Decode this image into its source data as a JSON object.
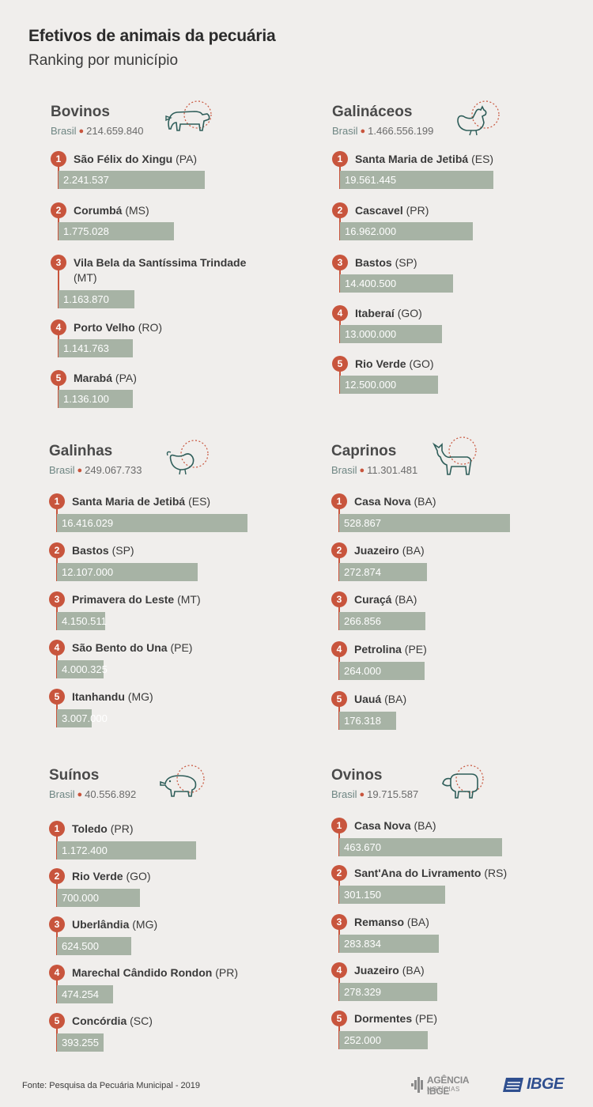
{
  "title": "Efetivos de animais da pecuária",
  "subtitle": "Ranking por município",
  "footer": "Fonte: Pesquisa da Pecuária Municipal - 2019",
  "logo_agencia": {
    "line1": "AGÊNCIA IBGE",
    "line2": "NOTÍCIAS"
  },
  "logo_ibge": "IBGE",
  "colors": {
    "rank": "#c8553d",
    "bar": "#a7b3a5",
    "icon": "#2f5e5a",
    "background": "#f0eeec"
  },
  "chart_data": [
    {
      "type": "bar",
      "title": "Bovinos",
      "icon": "cow-icon",
      "brasil_label": "Brasil",
      "brasil_value": "214.659.840",
      "items": [
        {
          "rank": "1",
          "name": "São Félix do Xingu",
          "uf": "(PA)",
          "value": 2241537,
          "label": "2.241.537"
        },
        {
          "rank": "2",
          "name": "Corumbá",
          "uf": "(MS)",
          "value": 1775028,
          "label": "1.775.028"
        },
        {
          "rank": "3",
          "name": "Vila Bela da Santíssima Trindade",
          "uf": "(MT)",
          "value": 1163870,
          "label": "1.163.870"
        },
        {
          "rank": "4",
          "name": "Porto Velho",
          "uf": "(RO)",
          "value": 1141763,
          "label": "1.141.763"
        },
        {
          "rank": "5",
          "name": "Marabá",
          "uf": "(PA)",
          "value": 1136100,
          "label": "1.136.100"
        }
      ]
    },
    {
      "type": "bar",
      "title": "Galináceos",
      "icon": "rooster-icon",
      "brasil_label": "Brasil",
      "brasil_value": "1.466.556.199",
      "items": [
        {
          "rank": "1",
          "name": "Santa Maria de Jetibá",
          "uf": "(ES)",
          "value": 19561445,
          "label": "19.561.445"
        },
        {
          "rank": "2",
          "name": "Cascavel",
          "uf": "(PR)",
          "value": 16962000,
          "label": "16.962.000"
        },
        {
          "rank": "3",
          "name": "Bastos",
          "uf": "(SP)",
          "value": 14400500,
          "label": "14.400.500"
        },
        {
          "rank": "4",
          "name": "Itaberaí",
          "uf": "(GO)",
          "value": 13000000,
          "label": "13.000.000"
        },
        {
          "rank": "5",
          "name": "Rio Verde",
          "uf": "(GO)",
          "value": 12500000,
          "label": "12.500.000"
        }
      ]
    },
    {
      "type": "bar",
      "title": "Galinhas",
      "icon": "hen-icon",
      "brasil_label": "Brasil",
      "brasil_value": "249.067.733",
      "items": [
        {
          "rank": "1",
          "name": "Santa Maria de Jetibá",
          "uf": "(ES)",
          "value": 16416029,
          "label": "16.416.029"
        },
        {
          "rank": "2",
          "name": "Bastos",
          "uf": "(SP)",
          "value": 12107000,
          "label": "12.107.000"
        },
        {
          "rank": "3",
          "name": "Primavera do Leste",
          "uf": "(MT)",
          "value": 4150511,
          "label": "4.150.511"
        },
        {
          "rank": "4",
          "name": "São Bento do Una",
          "uf": "(PE)",
          "value": 4000325,
          "label": "4.000.325"
        },
        {
          "rank": "5",
          "name": "Itanhandu",
          "uf": "(MG)",
          "value": 3007000,
          "label": "3.007.000"
        }
      ]
    },
    {
      "type": "bar",
      "title": "Caprinos",
      "icon": "goat-icon",
      "brasil_label": "Brasil",
      "brasil_value": "11.301.481",
      "items": [
        {
          "rank": "1",
          "name": "Casa Nova",
          "uf": "(BA)",
          "value": 528867,
          "label": "528.867"
        },
        {
          "rank": "2",
          "name": "Juazeiro",
          "uf": "(BA)",
          "value": 272874,
          "label": "272.874"
        },
        {
          "rank": "3",
          "name": "Curaçá",
          "uf": "(BA)",
          "value": 266856,
          "label": "266.856"
        },
        {
          "rank": "4",
          "name": "Petrolina",
          "uf": "(PE)",
          "value": 264000,
          "label": "264.000"
        },
        {
          "rank": "5",
          "name": "Uauá",
          "uf": "(BA)",
          "value": 176318,
          "label": "176.318"
        }
      ]
    },
    {
      "type": "bar",
      "title": "Suínos",
      "icon": "pig-icon",
      "brasil_label": "Brasil",
      "brasil_value": "40.556.892",
      "items": [
        {
          "rank": "1",
          "name": "Toledo",
          "uf": "(PR)",
          "value": 1172400,
          "label": "1.172.400"
        },
        {
          "rank": "2",
          "name": "Rio Verde",
          "uf": "(GO)",
          "value": 700000,
          "label": "700.000"
        },
        {
          "rank": "3",
          "name": "Uberlândia",
          "uf": "(MG)",
          "value": 624500,
          "label": "624.500"
        },
        {
          "rank": "4",
          "name": "Marechal Cândido Rondon",
          "uf": "(PR)",
          "value": 474254,
          "label": "474.254"
        },
        {
          "rank": "5",
          "name": "Concórdia",
          "uf": "(SC)",
          "value": 393255,
          "label": "393.255"
        }
      ]
    },
    {
      "type": "bar",
      "title": "Ovinos",
      "icon": "sheep-icon",
      "brasil_label": "Brasil",
      "brasil_value": "19.715.587",
      "items": [
        {
          "rank": "1",
          "name": "Casa Nova",
          "uf": "(BA)",
          "value": 463670,
          "label": "463.670"
        },
        {
          "rank": "2",
          "name": "Sant'Ana do Livramento",
          "uf": "(RS)",
          "value": 301150,
          "label": "301.150"
        },
        {
          "rank": "3",
          "name": "Remanso",
          "uf": "(BA)",
          "value": 283834,
          "label": "283.834"
        },
        {
          "rank": "4",
          "name": "Juazeiro",
          "uf": "(BA)",
          "value": 278329,
          "label": "278.329"
        },
        {
          "rank": "5",
          "name": "Dormentes",
          "uf": "(PE)",
          "value": 252000,
          "label": "252.000"
        }
      ]
    }
  ]
}
